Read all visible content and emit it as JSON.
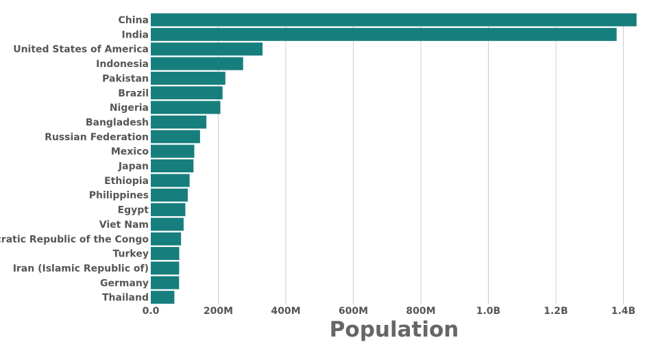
{
  "chart_data": {
    "type": "bar",
    "orientation": "horizontal",
    "xlabel": "Population",
    "ylabel": "",
    "xlim": [
      0,
      1440000000
    ],
    "grid": "vertical",
    "bar_color": "#177e7e",
    "x_ticks": [
      {
        "value": 0,
        "label": "0.0"
      },
      {
        "value": 200000000,
        "label": "200M"
      },
      {
        "value": 400000000,
        "label": "400M"
      },
      {
        "value": 600000000,
        "label": "600M"
      },
      {
        "value": 800000000,
        "label": "800M"
      },
      {
        "value": 1000000000,
        "label": "1.0B"
      },
      {
        "value": 1200000000,
        "label": "1.2B"
      },
      {
        "value": 1400000000,
        "label": "1.4B"
      }
    ],
    "categories": [
      "China",
      "India",
      "United States of America",
      "Indonesia",
      "Pakistan",
      "Brazil",
      "Nigeria",
      "Bangladesh",
      "Russian Federation",
      "Mexico",
      "Japan",
      "Ethiopia",
      "Philippines",
      "Egypt",
      "Viet Nam",
      "Democratic Republic of the Congo",
      "Turkey",
      "Iran (Islamic Republic of)",
      "Germany",
      "Thailand"
    ],
    "values": [
      1439000000,
      1380000000,
      331000000,
      273500000,
      220900000,
      212600000,
      206100000,
      164700000,
      145900000,
      128900000,
      126500000,
      115000000,
      109600000,
      102300000,
      97300000,
      89600000,
      84300000,
      84000000,
      83800000,
      69800000
    ]
  }
}
